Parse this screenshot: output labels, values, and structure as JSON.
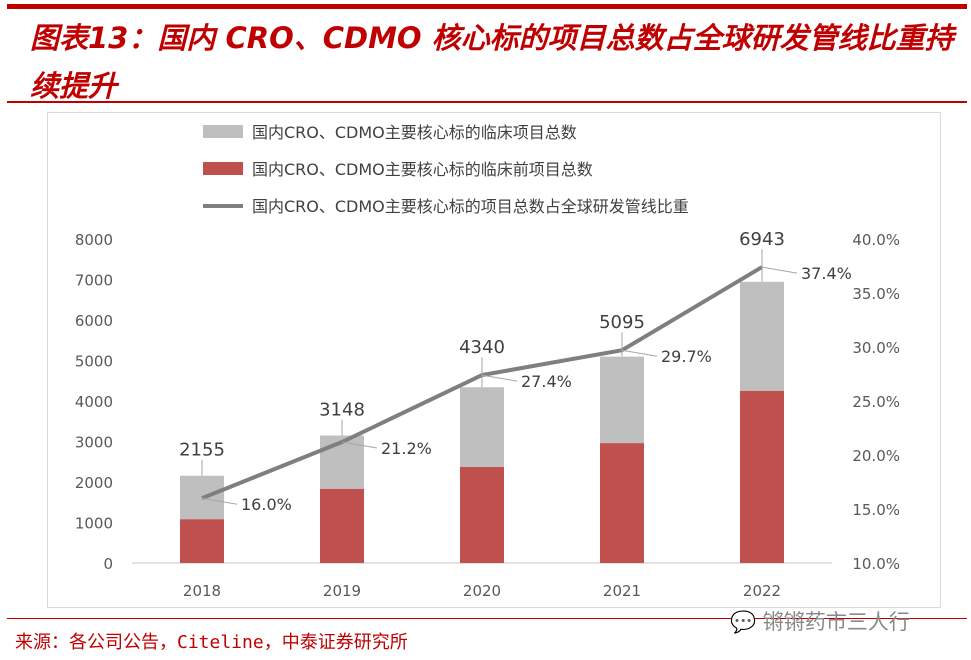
{
  "title": "图表13：国内 CRO、CDMO 核心标的项目总数占全球研发管线比重持续提升",
  "source": "来源：各公司公告，Citeline，中泰证券研究所",
  "watermark": "锵锵药市三人行",
  "colors": {
    "brand": "#c00000",
    "clinical": "#bfbfbf",
    "preclinical": "#c0504d",
    "line": "#7f7f7f"
  },
  "chart_data": {
    "type": "bar",
    "stacked": true,
    "categories": [
      "2018",
      "2019",
      "2020",
      "2021",
      "2022"
    ],
    "series": [
      {
        "name": "国内CRO、CDMO主要核心标的临床项目总数",
        "type": "bar",
        "values": [
          1075,
          1318,
          1970,
          2135,
          2693
        ]
      },
      {
        "name": "国内CRO、CDMO主要核心标的临床前项目总数",
        "type": "bar",
        "values": [
          1080,
          1830,
          2370,
          2960,
          4250
        ]
      },
      {
        "name": "国内CRO、CDMO主要核心标的项目总数占全球研发管线比重",
        "type": "line",
        "axis": "right",
        "values": [
          16.0,
          21.2,
          27.4,
          29.7,
          37.4
        ],
        "labels": [
          "16.0%",
          "21.2%",
          "27.4%",
          "29.7%",
          "37.4%"
        ]
      }
    ],
    "totals": [
      2155,
      3148,
      4340,
      5095,
      6943
    ],
    "total_labels": [
      "2155",
      "3148",
      "4340",
      "5095",
      "6943"
    ],
    "ylim": [
      0,
      8000
    ],
    "yticks": [
      "0",
      "1000",
      "2000",
      "3000",
      "4000",
      "5000",
      "6000",
      "7000",
      "8000"
    ],
    "y2lim": [
      10,
      40
    ],
    "y2ticks": [
      "10.0%",
      "15.0%",
      "20.0%",
      "25.0%",
      "30.0%",
      "35.0%",
      "40.0%"
    ],
    "legend": "top",
    "grid": false
  }
}
